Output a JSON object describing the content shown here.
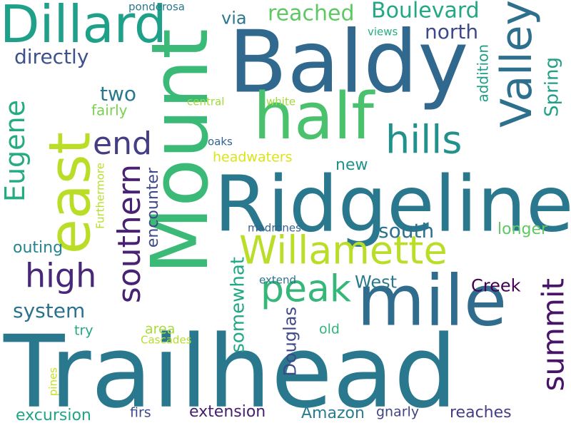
{
  "words": [
    {
      "text": "Trailhead",
      "color": "#2a788e"
    },
    {
      "text": "Ridgeline",
      "color": "#2a788e"
    },
    {
      "text": "Baldy",
      "color": "#31688e"
    },
    {
      "text": "Mount",
      "color": "#3aba76"
    },
    {
      "text": "mile",
      "color": "#2f6c8e"
    },
    {
      "text": "half",
      "color": "#4ac16d"
    },
    {
      "text": "east",
      "color": "#bade28"
    },
    {
      "text": "Dillard",
      "color": "#1fa088"
    },
    {
      "text": "Willamette",
      "color": "#bade28"
    },
    {
      "text": "Valley",
      "color": "#2d708e"
    },
    {
      "text": "southern",
      "color": "#482173"
    },
    {
      "text": "summit",
      "color": "#481467"
    },
    {
      "text": "hills",
      "color": "#21918c"
    },
    {
      "text": "peak",
      "color": "#35b779"
    },
    {
      "text": "high",
      "color": "#482878"
    },
    {
      "text": "end",
      "color": "#433e85"
    },
    {
      "text": "Eugene",
      "color": "#25ab82"
    },
    {
      "text": "Boulevard",
      "color": "#22a884"
    },
    {
      "text": "reached",
      "color": "#5ec962"
    },
    {
      "text": "south",
      "color": "#2c728e"
    },
    {
      "text": "directly",
      "color": "#3b528b"
    },
    {
      "text": "north",
      "color": "#3e4989"
    },
    {
      "text": "system",
      "color": "#2c728e"
    },
    {
      "text": "somewhat",
      "color": "#22a884"
    },
    {
      "text": "Spring",
      "color": "#1fa088"
    },
    {
      "text": "two",
      "color": "#2a788e"
    },
    {
      "text": "via",
      "color": "#2a788e"
    },
    {
      "text": "Creek",
      "color": "#440154"
    },
    {
      "text": "West",
      "color": "#2a788e"
    },
    {
      "text": "Douglas",
      "color": "#3e4989"
    },
    {
      "text": "encounter",
      "color": "#3e4989"
    },
    {
      "text": "extension",
      "color": "#482071"
    },
    {
      "text": "Amazon",
      "color": "#287d8e"
    },
    {
      "text": "reaches",
      "color": "#433e85"
    },
    {
      "text": "excursion",
      "color": "#20a486"
    },
    {
      "text": "outing",
      "color": "#25848e"
    },
    {
      "text": "new",
      "color": "#21918c"
    },
    {
      "text": "longer",
      "color": "#5ec962"
    },
    {
      "text": "fairly",
      "color": "#7ad151"
    },
    {
      "text": "addition",
      "color": "#1f9e89"
    },
    {
      "text": "headwaters",
      "color": "#dde318"
    },
    {
      "text": "area",
      "color": "#a8db34"
    },
    {
      "text": "old",
      "color": "#2fb47c"
    },
    {
      "text": "try",
      "color": "#22a884"
    },
    {
      "text": "firs",
      "color": "#3e4989"
    },
    {
      "text": "gnarly",
      "color": "#414487"
    },
    {
      "text": "madrones",
      "color": "#33638d"
    },
    {
      "text": "ponderosa",
      "color": "#2a788e"
    },
    {
      "text": "central",
      "color": "#a0da39"
    },
    {
      "text": "white",
      "color": "#9fda3a"
    },
    {
      "text": "oaks",
      "color": "#33638d"
    },
    {
      "text": "views",
      "color": "#27ad81"
    },
    {
      "text": "extend",
      "color": "#2c728e"
    },
    {
      "text": "Cascades",
      "color": "#b5de2b"
    },
    {
      "text": "Furthermore",
      "color": "#b8de29"
    },
    {
      "text": "pines",
      "color": "#c8e020"
    }
  ]
}
